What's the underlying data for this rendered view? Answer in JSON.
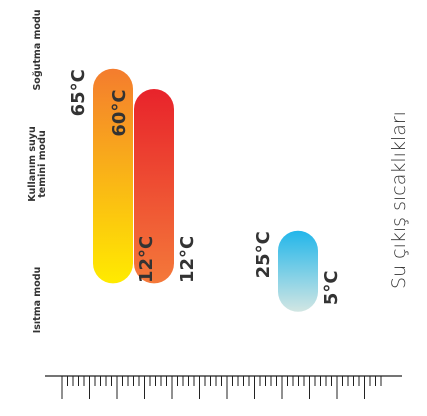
{
  "chart_data": {
    "type": "bar",
    "orientation": "horizontal-range",
    "title": "Su çıkış sıcaklıkları",
    "categories": [
      "Isıtma modu",
      "Kullanım suyu temini modu",
      "Soğutma modu"
    ],
    "series": [
      {
        "values": [
          [
            12,
            65
          ],
          [
            12,
            60
          ],
          [
            5,
            25
          ]
        ],
        "value_labels": [
          {
            "low": "12°C",
            "high": "65°C"
          },
          {
            "low": "12°C",
            "high": "60°C"
          },
          {
            "low": "5°C",
            "high": "25°C"
          }
        ]
      }
    ],
    "bar_gradients": [
      {
        "high_color": "#F47C2E",
        "low_color": "#FFEB00"
      },
      {
        "high_color": "#E8232B",
        "low_color": "#F4793A"
      },
      {
        "high_color": "#22B6EA",
        "low_color": "#D2E6E3"
      }
    ],
    "axis_range": [
      0,
      80
    ],
    "grid": false
  }
}
